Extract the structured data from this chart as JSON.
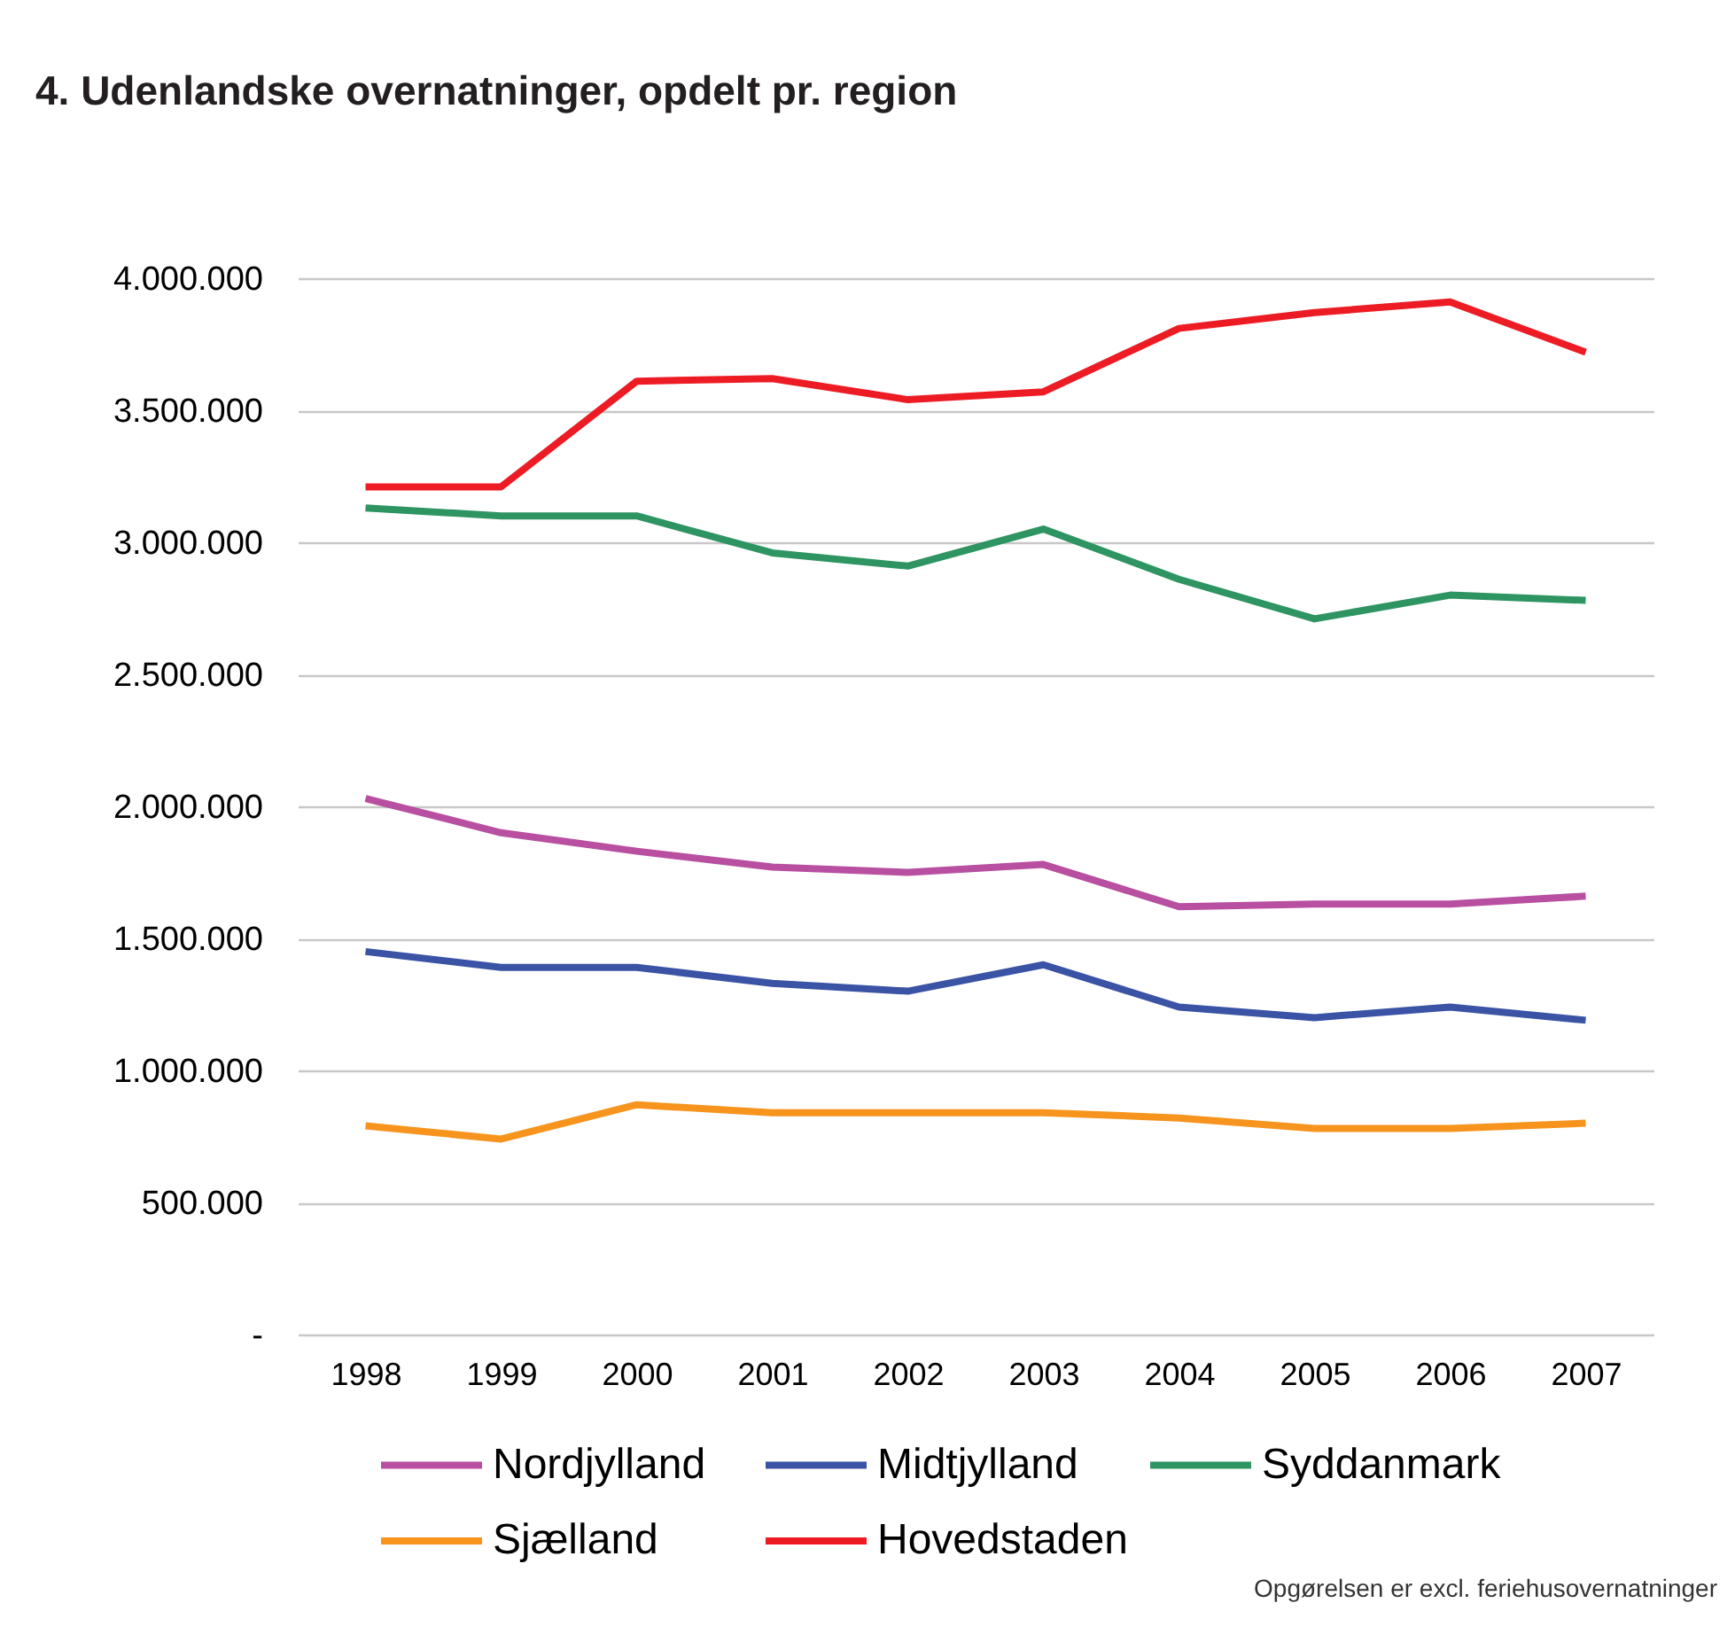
{
  "chart_data": {
    "type": "line",
    "title": "4. Udenlandske overnatninger, opdelt pr. region",
    "categories": [
      "1998",
      "1999",
      "2000",
      "2001",
      "2002",
      "2003",
      "2004",
      "2005",
      "2006",
      "2007"
    ],
    "series": [
      {
        "name": "Nordjylland",
        "color": "#b84fa0",
        "values": [
          2030000,
          1900000,
          1830000,
          1770000,
          1750000,
          1780000,
          1620000,
          1630000,
          1630000,
          1660000
        ]
      },
      {
        "name": "Midtjylland",
        "color": "#3a53a4",
        "values": [
          1450000,
          1390000,
          1390000,
          1330000,
          1300000,
          1400000,
          1240000,
          1200000,
          1240000,
          1190000
        ]
      },
      {
        "name": "Syddanmark",
        "color": "#2e9462",
        "values": [
          3130000,
          3100000,
          3100000,
          2960000,
          2910000,
          3050000,
          2860000,
          2710000,
          2800000,
          2780000
        ]
      },
      {
        "name": "Sjælland",
        "color": "#f7941d",
        "values": [
          790000,
          740000,
          870000,
          840000,
          840000,
          840000,
          820000,
          780000,
          780000,
          800000
        ]
      },
      {
        "name": "Hovedstaden",
        "color": "#ed1c24",
        "values": [
          3210000,
          3210000,
          3610000,
          3620000,
          3540000,
          3570000,
          3810000,
          3870000,
          3910000,
          3720000
        ]
      }
    ],
    "ylim": [
      0,
      4000000
    ],
    "yticks": [
      {
        "value": 0,
        "label": "-"
      },
      {
        "value": 500000,
        "label": "500.000"
      },
      {
        "value": 1000000,
        "label": "1.000.000"
      },
      {
        "value": 1500000,
        "label": "1.500.000"
      },
      {
        "value": 2000000,
        "label": "2.000.000"
      },
      {
        "value": 2500000,
        "label": "2.500.000"
      },
      {
        "value": 3000000,
        "label": "3.000.000"
      },
      {
        "value": 3500000,
        "label": "3.500.000"
      },
      {
        "value": 4000000,
        "label": "4.000.000"
      }
    ],
    "grid": "y",
    "legend": "bottom",
    "line_style": "solid",
    "annotations": [
      "Opgørelsen er excl. feriehusovernatninger"
    ]
  }
}
